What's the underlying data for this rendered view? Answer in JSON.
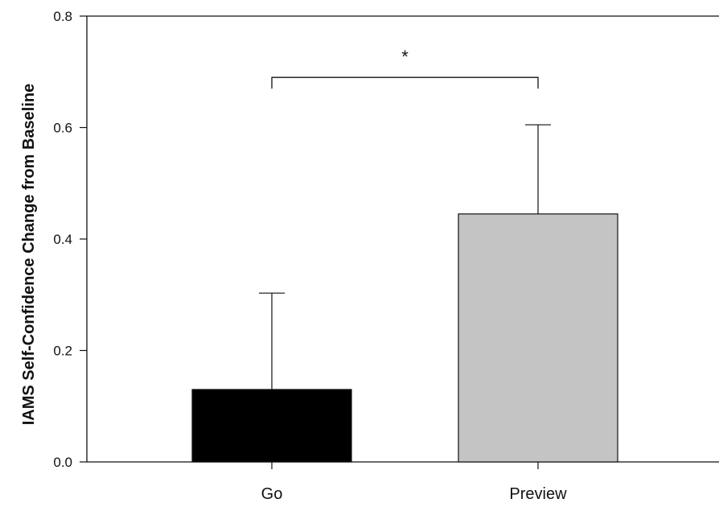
{
  "chart_data": {
    "type": "bar",
    "title": "",
    "xlabel": "",
    "ylabel": "IAMS Self-Confidence Change from Baseline",
    "categories": [
      "Go",
      "Preview"
    ],
    "values": [
      0.13,
      0.445
    ],
    "errors": [
      0.173,
      0.16
    ],
    "ylim": [
      0.0,
      0.8
    ],
    "yticks": [
      "0.0",
      "0.2",
      "0.4",
      "0.6",
      "0.8"
    ],
    "grid": false,
    "bar_colors": [
      "#000000",
      "#c4c4c4"
    ],
    "significance": {
      "between": [
        "Go",
        "Preview"
      ],
      "label": "*",
      "level": 0.69
    }
  }
}
